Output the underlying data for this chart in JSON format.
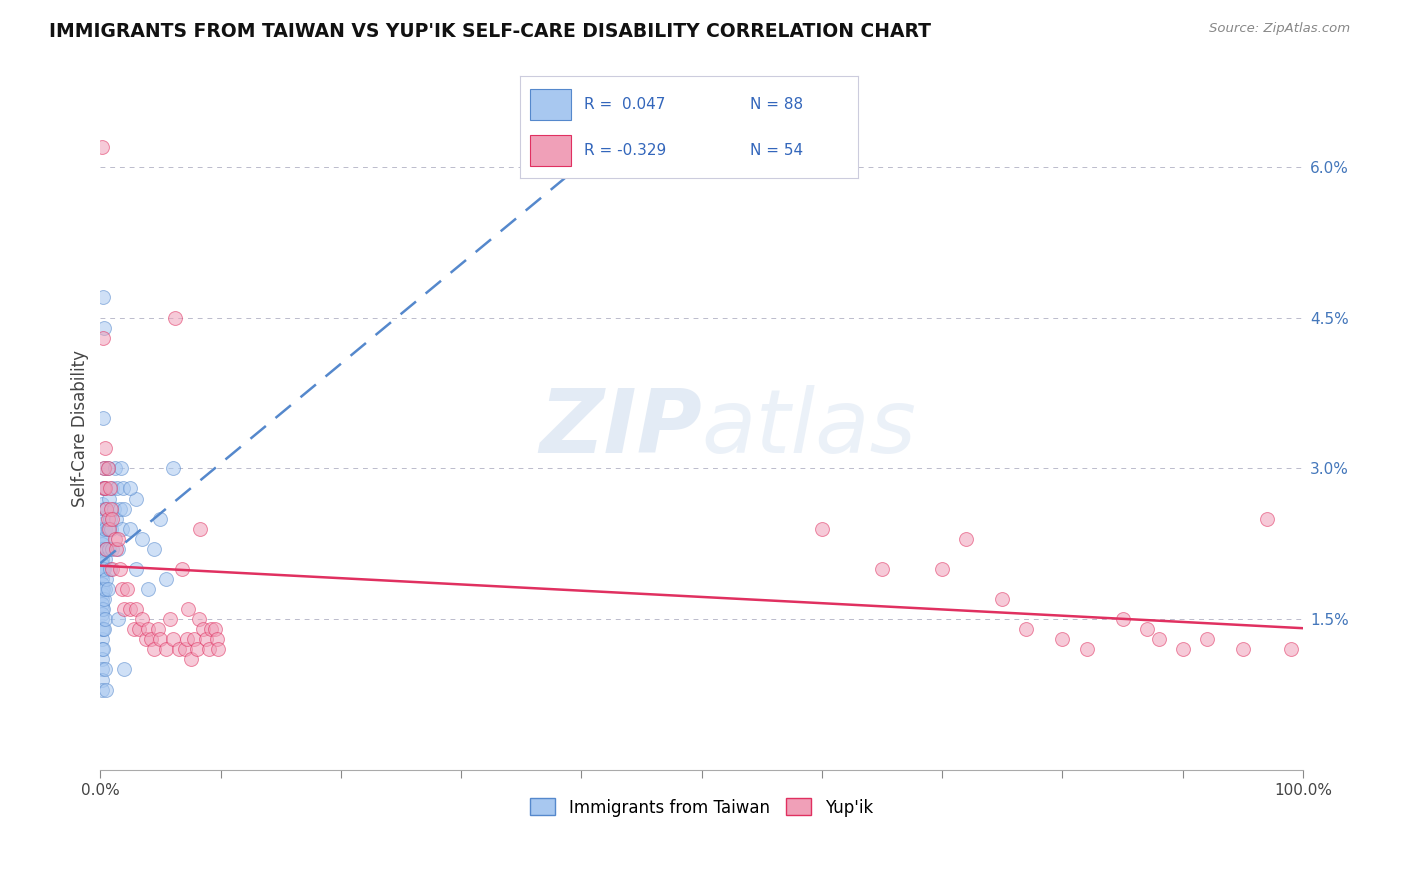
{
  "title": "IMMIGRANTS FROM TAIWAN VS YUP'IK SELF-CARE DISABILITY CORRELATION CHART",
  "source": "Source: ZipAtlas.com",
  "ylabel": "Self-Care Disability",
  "legend_labels": [
    "Immigrants from Taiwan",
    "Yup'ik"
  ],
  "color_blue": "#A8C8F0",
  "color_pink": "#F0A0B8",
  "trendline_blue": "#5588CC",
  "trendline_pink": "#E03060",
  "yticks": [
    0.015,
    0.03,
    0.045,
    0.06
  ],
  "ytick_labels": [
    "1.5%",
    "3.0%",
    "4.5%",
    "6.0%"
  ],
  "background_color": "#FFFFFF",
  "xlim": [
    0.0,
    1.0
  ],
  "ylim": [
    0.0,
    0.068
  ],
  "blue_scatter_x": [
    0.001,
    0.001,
    0.001,
    0.001,
    0.001,
    0.001,
    0.001,
    0.001,
    0.001,
    0.001,
    0.001,
    0.001,
    0.001,
    0.001,
    0.001,
    0.001,
    0.001,
    0.001,
    0.001,
    0.001,
    0.001,
    0.001,
    0.001,
    0.001,
    0.001,
    0.001,
    0.001,
    0.001,
    0.002,
    0.002,
    0.002,
    0.002,
    0.002,
    0.002,
    0.002,
    0.002,
    0.003,
    0.003,
    0.003,
    0.003,
    0.003,
    0.003,
    0.004,
    0.004,
    0.004,
    0.004,
    0.004,
    0.005,
    0.005,
    0.005,
    0.006,
    0.006,
    0.006,
    0.007,
    0.007,
    0.008,
    0.008,
    0.009,
    0.01,
    0.01,
    0.011,
    0.012,
    0.013,
    0.014,
    0.015,
    0.016,
    0.017,
    0.018,
    0.019,
    0.02,
    0.025,
    0.03,
    0.03,
    0.035,
    0.04,
    0.045,
    0.05,
    0.055,
    0.002,
    0.003,
    0.004,
    0.005,
    0.002,
    0.015,
    0.02,
    0.025,
    0.06
  ],
  "blue_scatter_y": [
    0.0265,
    0.0245,
    0.024,
    0.0235,
    0.023,
    0.0225,
    0.022,
    0.0215,
    0.021,
    0.0205,
    0.02,
    0.0195,
    0.019,
    0.0185,
    0.018,
    0.0175,
    0.017,
    0.0165,
    0.016,
    0.0155,
    0.015,
    0.014,
    0.013,
    0.012,
    0.011,
    0.01,
    0.009,
    0.008,
    0.028,
    0.025,
    0.022,
    0.02,
    0.018,
    0.016,
    0.014,
    0.012,
    0.03,
    0.026,
    0.023,
    0.02,
    0.017,
    0.014,
    0.028,
    0.024,
    0.021,
    0.018,
    0.015,
    0.026,
    0.022,
    0.019,
    0.03,
    0.024,
    0.018,
    0.027,
    0.022,
    0.025,
    0.02,
    0.024,
    0.028,
    0.022,
    0.026,
    0.03,
    0.025,
    0.028,
    0.022,
    0.026,
    0.03,
    0.024,
    0.028,
    0.026,
    0.024,
    0.02,
    0.027,
    0.023,
    0.018,
    0.022,
    0.025,
    0.019,
    0.047,
    0.044,
    0.01,
    0.008,
    0.035,
    0.015,
    0.01,
    0.028,
    0.03
  ],
  "pink_scatter_x": [
    0.001,
    0.002,
    0.003,
    0.003,
    0.004,
    0.004,
    0.005,
    0.005,
    0.006,
    0.006,
    0.007,
    0.008,
    0.009,
    0.01,
    0.01,
    0.012,
    0.013,
    0.015,
    0.016,
    0.018,
    0.02,
    0.022,
    0.025,
    0.028,
    0.03,
    0.032,
    0.035,
    0.038,
    0.04,
    0.042,
    0.045,
    0.048,
    0.05,
    0.055,
    0.058,
    0.06,
    0.065,
    0.07,
    0.072,
    0.075,
    0.078,
    0.08,
    0.082,
    0.085,
    0.088,
    0.09,
    0.092,
    0.095,
    0.097,
    0.098,
    0.062,
    0.068,
    0.073,
    0.083,
    0.6,
    0.65,
    0.7,
    0.72,
    0.75,
    0.77,
    0.8,
    0.82,
    0.85,
    0.87,
    0.88,
    0.9,
    0.92,
    0.95,
    0.97,
    0.99
  ],
  "pink_scatter_y": [
    0.062,
    0.043,
    0.03,
    0.028,
    0.032,
    0.028,
    0.026,
    0.022,
    0.03,
    0.025,
    0.024,
    0.028,
    0.026,
    0.025,
    0.02,
    0.023,
    0.022,
    0.023,
    0.02,
    0.018,
    0.016,
    0.018,
    0.016,
    0.014,
    0.016,
    0.014,
    0.015,
    0.013,
    0.014,
    0.013,
    0.012,
    0.014,
    0.013,
    0.012,
    0.015,
    0.013,
    0.012,
    0.012,
    0.013,
    0.011,
    0.013,
    0.012,
    0.015,
    0.014,
    0.013,
    0.012,
    0.014,
    0.014,
    0.013,
    0.012,
    0.045,
    0.02,
    0.016,
    0.024,
    0.024,
    0.02,
    0.02,
    0.023,
    0.017,
    0.014,
    0.013,
    0.012,
    0.015,
    0.014,
    0.013,
    0.012,
    0.013,
    0.012,
    0.025,
    0.012
  ]
}
